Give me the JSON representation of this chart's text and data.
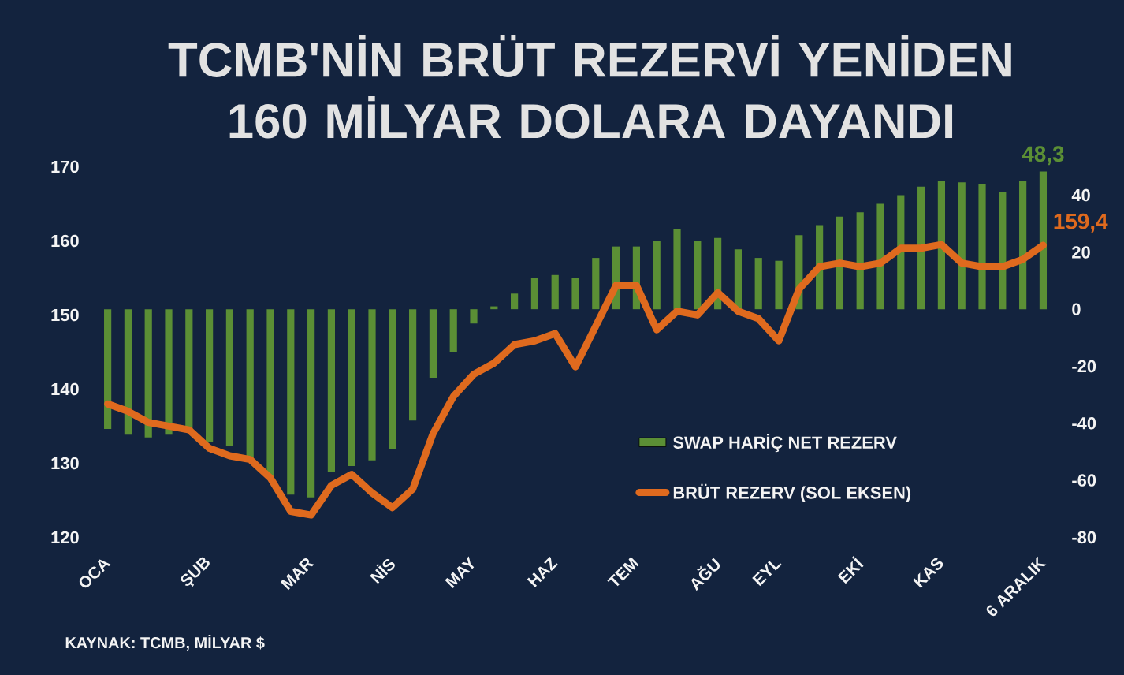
{
  "chart_data": {
    "type": "bar",
    "title": "TCMB'NİN BRÜT REZERVİ YENİDEN 160 MİLYAR DOLARA DAYANDI",
    "annotations": [
      "KAYNAK: TCMB, MİLYAR $"
    ],
    "categories": [
      "OCA",
      null,
      null,
      null,
      null,
      "ŞUB",
      null,
      null,
      null,
      null,
      "MAR",
      null,
      null,
      null,
      "NİS",
      null,
      null,
      null,
      "MAY",
      null,
      null,
      null,
      "HAZ",
      null,
      null,
      null,
      "TEM",
      null,
      null,
      null,
      "AĞU",
      null,
      null,
      "EYL",
      null,
      null,
      null,
      "EKİ",
      null,
      null,
      null,
      "KAS",
      null,
      null,
      null,
      null,
      "6 ARALIK"
    ],
    "series": [
      {
        "name": "SWAP HARİÇ NET REZERV",
        "axis": "y2",
        "color": "#5b8f35",
        "values": [
          -42,
          -44,
          -45,
          -44,
          -43,
          -46.5,
          -48,
          -53,
          -59,
          -65,
          -66,
          -57,
          -55,
          -53,
          -49,
          -39,
          -24,
          -15,
          -5,
          1,
          5.5,
          11,
          12,
          11,
          18,
          22,
          22,
          24,
          28,
          24,
          25,
          21,
          18,
          17,
          26,
          29.5,
          32.5,
          34,
          37,
          40,
          43,
          45,
          44.5,
          44,
          41,
          45,
          48.3
        ],
        "value_labels": [
          null,
          null,
          null,
          null,
          null,
          null,
          null,
          null,
          null,
          null,
          null,
          null,
          null,
          null,
          null,
          null,
          null,
          null,
          null,
          null,
          null,
          null,
          null,
          null,
          null,
          null,
          null,
          null,
          null,
          null,
          null,
          null,
          null,
          null,
          null,
          null,
          null,
          null,
          null,
          null,
          null,
          null,
          null,
          null,
          null,
          null,
          "48,3"
        ]
      },
      {
        "name": "BRÜT REZERV (SOL EKSEN)",
        "type": "line",
        "color": "#df6a1e",
        "values": [
          138,
          137,
          135.5,
          135,
          134.5,
          132,
          131,
          130.5,
          128,
          123.5,
          123,
          127,
          128.5,
          126,
          124,
          126.5,
          134,
          139,
          142,
          143.5,
          146,
          146.5,
          147.5,
          143,
          148.5,
          154,
          154,
          148,
          150.5,
          150,
          153,
          150.5,
          149.5,
          146.5,
          153.5,
          156.5,
          157,
          156.5,
          157,
          159,
          159,
          159.5,
          157,
          156.5,
          156.5,
          157.5,
          159.4
        ],
        "value_labels": [
          null,
          null,
          null,
          null,
          null,
          null,
          null,
          null,
          null,
          null,
          null,
          null,
          null,
          null,
          null,
          null,
          null,
          null,
          null,
          null,
          null,
          null,
          null,
          null,
          null,
          null,
          null,
          null,
          null,
          null,
          null,
          null,
          null,
          null,
          null,
          null,
          null,
          null,
          null,
          null,
          null,
          null,
          null,
          null,
          null,
          null,
          "159,4"
        ]
      }
    ],
    "ylim": [
      120,
      170
    ],
    "yticks": [
      120,
      130,
      140,
      150,
      160,
      170
    ],
    "y2lim": [
      -80,
      50
    ],
    "y2ticks": [
      -80,
      -60,
      -40,
      -20,
      0,
      20,
      40
    ],
    "legend": "bottom right"
  }
}
